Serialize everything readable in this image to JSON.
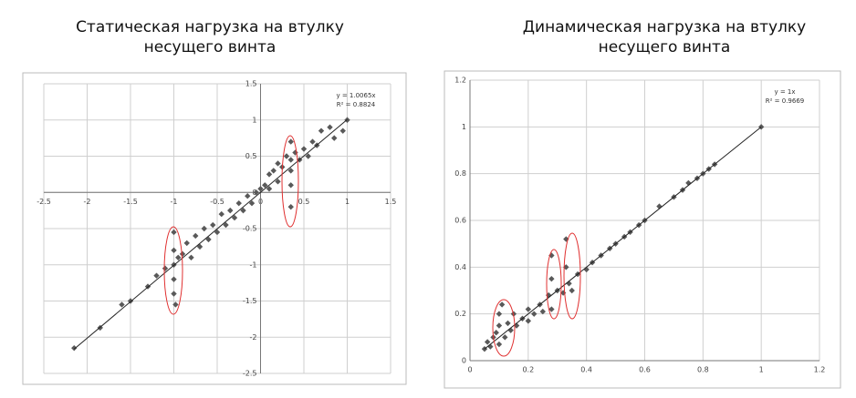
{
  "chart_data": [
    {
      "type": "scatter",
      "title": [
        "Статическая нагрузка на втулку",
        "несущего винта"
      ],
      "x": [
        -2.15,
        -1.85,
        -1.6,
        -1.5,
        -1.3,
        -1.2,
        -1.1,
        -1.0,
        -1.0,
        -1.0,
        -1.0,
        -1.0,
        -0.98,
        -0.95,
        -0.9,
        -0.85,
        -0.8,
        -0.75,
        -0.7,
        -0.65,
        -0.6,
        -0.55,
        -0.5,
        -0.45,
        -0.4,
        -0.35,
        -0.3,
        -0.25,
        -0.2,
        -0.15,
        -0.1,
        -0.05,
        0,
        0.05,
        0.1,
        0.1,
        0.15,
        0.2,
        0.2,
        0.25,
        0.3,
        0.35,
        0.35,
        0.35,
        0.35,
        0.35,
        0.4,
        0.45,
        0.5,
        0.55,
        0.6,
        0.65,
        0.7,
        0.8,
        0.85,
        0.95,
        1.0
      ],
      "values": [
        -2.15,
        -1.87,
        -1.55,
        -1.5,
        -1.3,
        -1.15,
        -1.05,
        -0.55,
        -0.8,
        -1.0,
        -1.2,
        -1.4,
        -1.55,
        -0.9,
        -0.85,
        -0.7,
        -0.9,
        -0.6,
        -0.75,
        -0.5,
        -0.65,
        -0.45,
        -0.55,
        -0.3,
        -0.45,
        -0.25,
        -0.35,
        -0.15,
        -0.25,
        -0.05,
        -0.15,
        0.0,
        0.05,
        0.1,
        0.05,
        0.25,
        0.3,
        0.15,
        0.4,
        0.35,
        0.5,
        0.45,
        0.7,
        -0.2,
        0.1,
        0.3,
        0.55,
        0.45,
        0.6,
        0.5,
        0.7,
        0.65,
        0.85,
        0.9,
        0.75,
        0.85,
        1.0
      ],
      "color": "#595959",
      "trendline": {
        "slope": 1.0065,
        "label": "y = 1.0065x",
        "r2_label": "R² = 0.8824"
      },
      "xlim": [
        -2.5,
        1.5
      ],
      "xticks": [
        -2.5,
        -2,
        -1.5,
        -1,
        -0.5,
        0,
        0.5,
        1,
        1.5
      ],
      "ylim": [
        -2.5,
        1.5
      ],
      "yticks": [
        -2.5,
        -2,
        -1.5,
        -1,
        -0.5,
        0,
        0.5,
        1,
        1.5
      ],
      "grid": true,
      "axis_position": "origin"
    },
    {
      "type": "scatter",
      "title": [
        "Динамическая нагрузка на втулку",
        "несущего винта"
      ],
      "x": [
        0.05,
        0.06,
        0.07,
        0.08,
        0.09,
        0.1,
        0.1,
        0.1,
        0.11,
        0.12,
        0.13,
        0.14,
        0.15,
        0.16,
        0.18,
        0.2,
        0.2,
        0.22,
        0.24,
        0.25,
        0.27,
        0.28,
        0.28,
        0.28,
        0.3,
        0.32,
        0.33,
        0.33,
        0.34,
        0.35,
        0.37,
        0.4,
        0.42,
        0.45,
        0.48,
        0.5,
        0.53,
        0.55,
        0.58,
        0.6,
        0.65,
        0.7,
        0.73,
        0.75,
        0.78,
        0.8,
        0.82,
        0.84,
        1.0
      ],
      "values": [
        0.05,
        0.08,
        0.06,
        0.1,
        0.12,
        0.07,
        0.15,
        0.2,
        0.24,
        0.1,
        0.16,
        0.13,
        0.2,
        0.15,
        0.18,
        0.22,
        0.17,
        0.2,
        0.24,
        0.21,
        0.28,
        0.45,
        0.35,
        0.22,
        0.3,
        0.29,
        0.52,
        0.4,
        0.33,
        0.3,
        0.37,
        0.39,
        0.42,
        0.45,
        0.48,
        0.5,
        0.53,
        0.55,
        0.58,
        0.6,
        0.66,
        0.7,
        0.73,
        0.76,
        0.78,
        0.8,
        0.82,
        0.84,
        1.0
      ],
      "color": "#595959",
      "trendline": {
        "slope": 1,
        "label": "y = 1x",
        "r2_label": "R² = 0.9669"
      },
      "xlim": [
        0,
        1.2
      ],
      "xticks": [
        0,
        0.2,
        0.4,
        0.6,
        0.8,
        1,
        1.2
      ],
      "ylim": [
        0,
        1.2
      ],
      "yticks": [
        0,
        0.2,
        0.4,
        0.6,
        0.8,
        1,
        1.2
      ],
      "grid": true,
      "axis_position": "edge"
    }
  ]
}
